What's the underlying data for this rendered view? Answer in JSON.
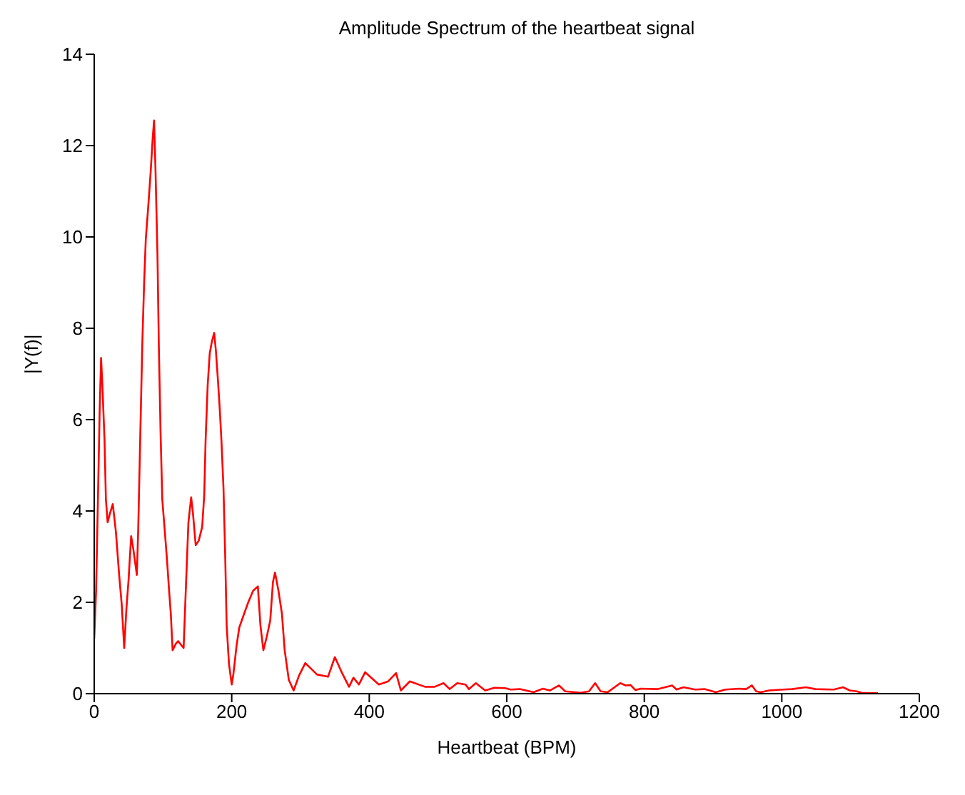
{
  "chart_data": {
    "type": "line",
    "title": "Amplitude Spectrum of the heartbeat signal",
    "xlabel": "Heartbeat (BPM)",
    "ylabel": "|Y(f)|",
    "xlim": [
      0,
      1200
    ],
    "xticks": [
      0,
      200,
      400,
      600,
      800,
      1000,
      1200
    ],
    "ylim": [
      0,
      14
    ],
    "yticks": [
      0,
      2,
      4,
      6,
      8,
      10,
      12,
      14
    ],
    "grid": false,
    "legend": false,
    "marker": "none",
    "line_style": "solid",
    "series": [
      {
        "color": "#ff0000",
        "x": [
          0,
          2.7,
          5.4,
          8,
          10,
          12,
          15,
          17,
          19.5,
          23,
          27,
          31.5,
          36,
          40,
          43.6,
          47,
          50,
          53.7,
          57,
          62,
          64,
          67,
          70,
          72.5,
          75,
          78.5,
          82,
          85,
          87,
          89,
          92,
          94,
          96.6,
          99,
          102.7,
          106,
          108.7,
          111.4,
          114,
          119,
          122,
          130,
          133,
          137,
          141,
          143.6,
          147.6,
          152,
          157,
          160,
          162,
          165,
          168,
          171,
          174.5,
          177,
          180,
          182.5,
          185,
          188,
          190.6,
          192.6,
          196,
          200,
          202.6,
          207,
          211,
          218,
          224,
          231,
          238,
          241.7,
          246,
          251,
          256,
          260,
          263,
          268,
          273,
          277,
          283,
          290,
          298,
          307,
          324,
          340,
          350,
          360.5,
          370.6,
          377,
          385,
          394,
          414,
          427.6,
          439,
          446,
          459,
          481,
          495,
          508,
          517,
          528,
          540,
          545,
          555,
          568.6,
          582,
          597.6,
          605.6,
          619,
          639,
          652.6,
          662.6,
          676,
          685,
          707.6,
          719.6,
          728.5,
          736.6,
          746.6,
          765,
          773,
          780,
          787,
          795,
          820,
          840.5,
          847,
          857,
          874,
          887.6,
          904,
          918,
          938,
          948,
          956.6,
          962.7,
          969.5,
          981.5,
          1001.6,
          1015,
          1035,
          1049,
          1075.5,
          1089,
          1099,
          1109,
          1116,
          1126,
          1140
        ],
        "values": [
          1.2,
          2.25,
          4.25,
          6.25,
          7.35,
          6.7,
          5.55,
          4.25,
          3.75,
          3.95,
          4.15,
          3.55,
          2.65,
          1.95,
          1.0,
          1.9,
          2.5,
          3.45,
          3.15,
          2.6,
          3.6,
          5.65,
          7.7,
          8.95,
          9.95,
          10.65,
          11.4,
          12.15,
          12.55,
          11.55,
          9.6,
          7.6,
          5.65,
          4.25,
          3.55,
          2.9,
          2.3,
          1.75,
          0.95,
          1.1,
          1.15,
          1.0,
          2.2,
          3.75,
          4.3,
          3.95,
          3.25,
          3.35,
          3.65,
          4.35,
          5.55,
          6.75,
          7.45,
          7.7,
          7.9,
          7.5,
          6.85,
          6.25,
          5.55,
          4.5,
          2.95,
          1.5,
          0.65,
          0.2,
          0.45,
          1.05,
          1.45,
          1.75,
          2.0,
          2.25,
          2.35,
          1.5,
          0.95,
          1.25,
          1.6,
          2.45,
          2.65,
          2.25,
          1.75,
          0.95,
          0.3,
          0.07,
          0.4,
          0.67,
          0.42,
          0.37,
          0.8,
          0.45,
          0.15,
          0.35,
          0.2,
          0.47,
          0.2,
          0.27,
          0.45,
          0.07,
          0.27,
          0.15,
          0.15,
          0.23,
          0.1,
          0.23,
          0.2,
          0.1,
          0.23,
          0.07,
          0.13,
          0.12,
          0.09,
          0.1,
          0.03,
          0.11,
          0.07,
          0.18,
          0.05,
          0.02,
          0.05,
          0.23,
          0.05,
          0.03,
          0.23,
          0.18,
          0.19,
          0.08,
          0.11,
          0.1,
          0.18,
          0.09,
          0.14,
          0.09,
          0.1,
          0.03,
          0.09,
          0.11,
          0.1,
          0.18,
          0.05,
          0.03,
          0.07,
          0.09,
          0.1,
          0.14,
          0.1,
          0.09,
          0.14,
          0.07,
          0.05,
          0.02,
          0.01,
          0.01
        ]
      }
    ]
  }
}
